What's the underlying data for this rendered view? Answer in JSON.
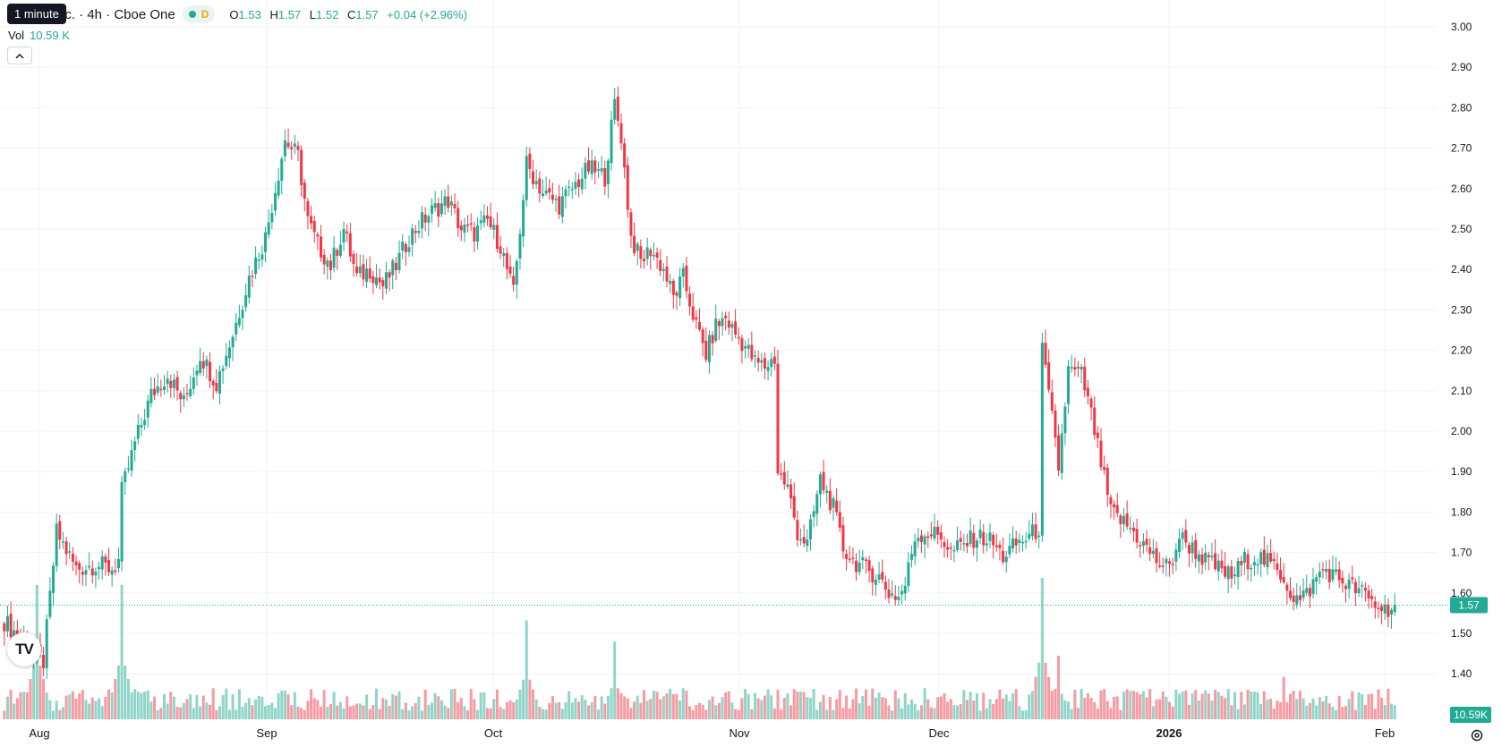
{
  "legend": {
    "symbol_title": "nc. · 4h · Cboe One",
    "interval_mark": "D",
    "open_label": "O",
    "open": "1.53",
    "high_label": "H",
    "high": "1.57",
    "low_label": "L",
    "low": "1.52",
    "close_label": "C",
    "close": "1.57",
    "change": "+0.04 (+2.96%)"
  },
  "tooltip": "1 minute",
  "volume": {
    "label": "Vol",
    "value": "10.59 K"
  },
  "icons": {
    "collapse": "chevron-up-icon",
    "logo": "tradingview-logo",
    "settings": "gear-icon"
  },
  "logo_text": "TV",
  "colors": {
    "up": "#22ab94",
    "down": "#f23645",
    "grid": "#f0f3fa",
    "last_price": "#22ab94"
  },
  "chart_data": {
    "type": "candlestick",
    "interval": "4h",
    "price_axis": {
      "min": 1.35,
      "max": 3.0,
      "ticks": [
        "3.00",
        "2.90",
        "2.80",
        "2.70",
        "2.60",
        "2.50",
        "2.40",
        "2.30",
        "2.20",
        "2.10",
        "2.00",
        "1.90",
        "1.80",
        "1.70",
        "1.60",
        "1.50",
        "1.40"
      ]
    },
    "time_axis": [
      "Aug",
      "Sep",
      "Oct",
      "Nov",
      "Dec",
      "2026",
      "Feb"
    ],
    "last_price": {
      "value": 1.57,
      "label": "1.57"
    },
    "last_volume_label": "10.59K",
    "price_anchors": [
      [
        0,
        1.53
      ],
      [
        6,
        1.48
      ],
      [
        9,
        1.45
      ],
      [
        12,
        1.43
      ],
      [
        16,
        1.75
      ],
      [
        22,
        1.66
      ],
      [
        28,
        1.67
      ],
      [
        33,
        1.66
      ],
      [
        35,
        1.68
      ],
      [
        36,
        1.85
      ],
      [
        40,
        1.97
      ],
      [
        45,
        2.09
      ],
      [
        50,
        2.14
      ],
      [
        55,
        2.07
      ],
      [
        60,
        2.19
      ],
      [
        65,
        2.12
      ],
      [
        70,
        2.24
      ],
      [
        75,
        2.38
      ],
      [
        80,
        2.48
      ],
      [
        86,
        2.72
      ],
      [
        90,
        2.68
      ],
      [
        93,
        2.52
      ],
      [
        96,
        2.46
      ],
      [
        100,
        2.41
      ],
      [
        104,
        2.5
      ],
      [
        108,
        2.38
      ],
      [
        112,
        2.4
      ],
      [
        116,
        2.36
      ],
      [
        120,
        2.41
      ],
      [
        124,
        2.48
      ],
      [
        128,
        2.52
      ],
      [
        132,
        2.55
      ],
      [
        136,
        2.57
      ],
      [
        140,
        2.5
      ],
      [
        144,
        2.49
      ],
      [
        148,
        2.52
      ],
      [
        152,
        2.46
      ],
      [
        156,
        2.34
      ],
      [
        160,
        2.66
      ],
      [
        165,
        2.59
      ],
      [
        170,
        2.56
      ],
      [
        175,
        2.61
      ],
      [
        179,
        2.65
      ],
      [
        184,
        2.63
      ],
      [
        187,
        2.81
      ],
      [
        189,
        2.73
      ],
      [
        192,
        2.48
      ],
      [
        195,
        2.42
      ],
      [
        198,
        2.45
      ],
      [
        202,
        2.4
      ],
      [
        205,
        2.33
      ],
      [
        208,
        2.38
      ],
      [
        212,
        2.26
      ],
      [
        215,
        2.19
      ],
      [
        218,
        2.26
      ],
      [
        221,
        2.28
      ],
      [
        224,
        2.24
      ],
      [
        227,
        2.21
      ],
      [
        230,
        2.17
      ],
      [
        233,
        2.16
      ],
      [
        236,
        2.18
      ],
      [
        237,
        1.9
      ],
      [
        240,
        1.86
      ],
      [
        243,
        1.75
      ],
      [
        246,
        1.72
      ],
      [
        250,
        1.88
      ],
      [
        254,
        1.81
      ],
      [
        257,
        1.71
      ],
      [
        260,
        1.68
      ],
      [
        264,
        1.66
      ],
      [
        268,
        1.64
      ],
      [
        271,
        1.6
      ],
      [
        274,
        1.59
      ],
      [
        276,
        1.62
      ],
      [
        279,
        1.74
      ],
      [
        283,
        1.75
      ],
      [
        287,
        1.74
      ],
      [
        290,
        1.7
      ],
      [
        294,
        1.72
      ],
      [
        298,
        1.74
      ],
      [
        302,
        1.73
      ],
      [
        306,
        1.69
      ],
      [
        310,
        1.72
      ],
      [
        314,
        1.74
      ],
      [
        317,
        1.76
      ],
      [
        318,
        2.2
      ],
      [
        321,
        2.03
      ],
      [
        323,
        1.91
      ],
      [
        326,
        2.15
      ],
      [
        330,
        2.14
      ],
      [
        333,
        2.04
      ],
      [
        336,
        1.92
      ],
      [
        339,
        1.8
      ],
      [
        342,
        1.78
      ],
      [
        345,
        1.76
      ],
      [
        349,
        1.72
      ],
      [
        353,
        1.68
      ],
      [
        357,
        1.66
      ],
      [
        360,
        1.74
      ],
      [
        364,
        1.71
      ],
      [
        368,
        1.68
      ],
      [
        372,
        1.66
      ],
      [
        376,
        1.64
      ],
      [
        380,
        1.68
      ],
      [
        384,
        1.69
      ],
      [
        388,
        1.67
      ],
      [
        392,
        1.64
      ],
      [
        394,
        1.6
      ],
      [
        397,
        1.58
      ],
      [
        400,
        1.61
      ],
      [
        404,
        1.66
      ],
      [
        408,
        1.64
      ],
      [
        412,
        1.62
      ],
      [
        416,
        1.6
      ],
      [
        420,
        1.57
      ],
      [
        423,
        1.56
      ],
      [
        426,
        1.57
      ]
    ],
    "gaps": [
      [
        236,
        237
      ],
      [
        317,
        318
      ]
    ],
    "volume_spikes": [
      [
        10,
        0.95
      ],
      [
        36,
        0.95
      ],
      [
        160,
        0.7
      ],
      [
        187,
        0.55
      ],
      [
        318,
        1.0
      ],
      [
        323,
        0.45
      ],
      [
        392,
        0.3
      ]
    ]
  }
}
